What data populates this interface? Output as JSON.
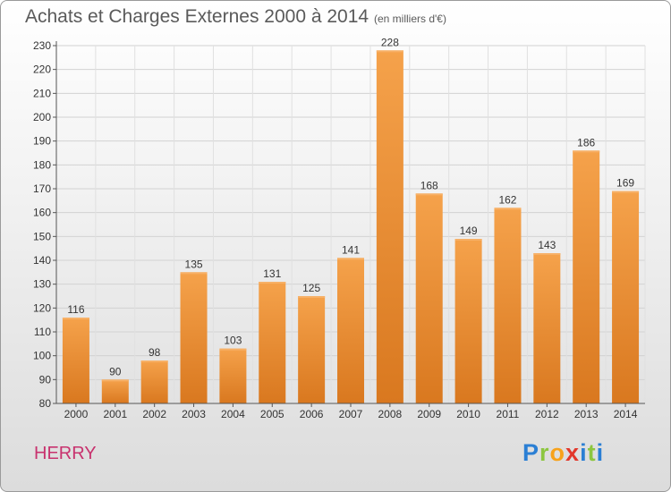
{
  "header": {
    "title": "Achats et Charges Externes 2000 à 2014",
    "subtitle": "(en milliers d'€)"
  },
  "footer": {
    "commune": "HERRY",
    "logo_text": "Proxiti"
  },
  "colors": {
    "bar": "#f09a3e",
    "bar_dark": "#d9781f",
    "title": "#5a5a5a",
    "commune": "#c8326e",
    "logo_p": "#2b7fd4",
    "logo_r": "#8cc63f",
    "logo_o": "#f7a21b",
    "logo_x": "#e2372b",
    "logo_i": "#2b7fd4",
    "logo_t": "#8cc63f"
  },
  "chart_data": {
    "type": "bar",
    "title": "Achats et Charges Externes 2000 à 2014",
    "subtitle": "(en milliers d'€)",
    "categories": [
      "2000",
      "2001",
      "2002",
      "2003",
      "2004",
      "2005",
      "2006",
      "2007",
      "2008",
      "2009",
      "2010",
      "2011",
      "2012",
      "2013",
      "2014"
    ],
    "values": [
      116,
      90,
      98,
      135,
      103,
      131,
      125,
      141,
      228,
      168,
      149,
      162,
      143,
      186,
      169
    ],
    "ylim": [
      80,
      230
    ],
    "yticks": [
      80,
      90,
      100,
      110,
      120,
      130,
      140,
      150,
      160,
      170,
      180,
      190,
      200,
      210,
      220,
      230
    ],
    "grid": true,
    "xlabel": "",
    "ylabel": ""
  }
}
